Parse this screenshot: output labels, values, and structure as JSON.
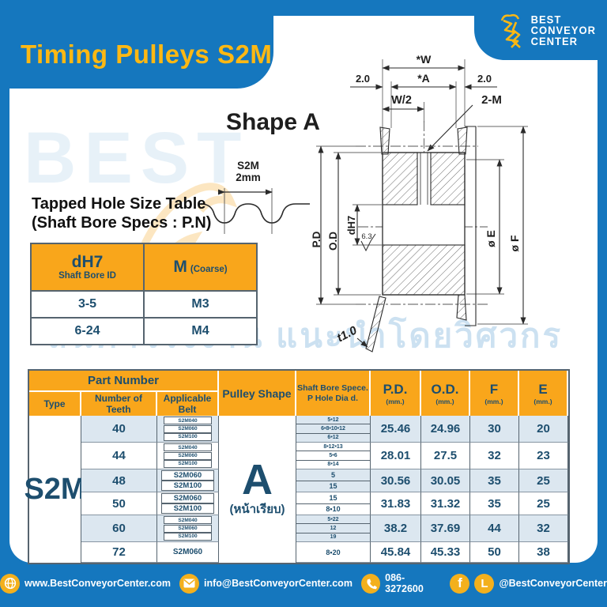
{
  "page": {
    "title": "Timing Pulleys S2M"
  },
  "brand": {
    "line1": "BEST",
    "line2": "CONVEYOR",
    "line3": "CENTER"
  },
  "watermark": {
    "letters": "BEST",
    "thai": "สินค้าโรงงาน แนะนำโดยวิศวกร"
  },
  "drawing": {
    "shape_title": "Shape A",
    "labels": {
      "w": "*W",
      "a": "*A",
      "left_offset": "2.0",
      "right_offset": "2.0",
      "half_width": "W/2",
      "tapped_hole": "2-M",
      "pd": "P.D",
      "od": "O.D",
      "bore": "dH7",
      "surface": "6.3",
      "e": "ø E",
      "f": "ø F",
      "thickness": "t1.0"
    },
    "tooth_profile": {
      "series": "S2M",
      "pitch": "2mm"
    }
  },
  "tapped_table": {
    "heading_line1": "Tapped Hole Size Table",
    "heading_line2": "(Shaft Bore Specs : P.N)",
    "col1_title": "dH7",
    "col1_sub": "Shaft Bore ID",
    "col2_title": "M",
    "col2_sub": "(Coarse)",
    "rows": [
      {
        "bore": "3-5",
        "m": "M3"
      },
      {
        "bore": "6-24",
        "m": "M4"
      }
    ]
  },
  "main_table": {
    "headers": {
      "part_number": "Part Number",
      "type": "Type",
      "teeth": "Number of Teeth",
      "belt": "Applicable Belt",
      "shape": "Pulley Shape",
      "bore_line1": "Shaft Bore Spece.",
      "bore_line2": "P Hole Dia d.",
      "pd": "P.D.",
      "od": "O.D.",
      "f": "F",
      "e": "E",
      "mm": "(mm.)"
    },
    "type": "S2M",
    "shape": {
      "letter": "A",
      "thai": "(หน้าเรียบ)"
    },
    "rows": [
      {
        "teeth": "40",
        "belts": [
          "S2M040",
          "S2M060",
          "S2M100"
        ],
        "bores": [
          "5•12",
          "6•8•10•12",
          "6•12"
        ],
        "pd": "25.46",
        "od": "24.96",
        "f": "30",
        "e": "20",
        "striped": true
      },
      {
        "teeth": "44",
        "belts": [
          "S2M040",
          "S2M060",
          "S2M100"
        ],
        "bores": [
          "8•12•13",
          "5•6",
          "8•14"
        ],
        "pd": "28.01",
        "od": "27.5",
        "f": "32",
        "e": "23",
        "striped": false
      },
      {
        "teeth": "48",
        "belts": [
          "S2M060",
          "S2M100"
        ],
        "bores": [
          "5",
          "15"
        ],
        "pd": "30.56",
        "od": "30.05",
        "f": "35",
        "e": "25",
        "striped": true
      },
      {
        "teeth": "50",
        "belts": [
          "S2M060",
          "S2M100"
        ],
        "bores": [
          "15",
          "8•10"
        ],
        "pd": "31.83",
        "od": "31.32",
        "f": "35",
        "e": "25",
        "striped": false
      },
      {
        "teeth": "60",
        "belts": [
          "S2M040",
          "S2M060",
          "S2M100"
        ],
        "bores": [
          "5•22",
          "12",
          "19"
        ],
        "pd": "38.2",
        "od": "37.69",
        "f": "44",
        "e": "32",
        "striped": true
      },
      {
        "teeth": "72",
        "belts": [
          "S2M060"
        ],
        "bores": [
          "8•20"
        ],
        "pd": "45.84",
        "od": "45.33",
        "f": "50",
        "e": "38",
        "striped": false
      }
    ]
  },
  "footer": {
    "website": "www.BestConveyorCenter.com",
    "email": "info@BestConveyorCenter.com",
    "phone": "086-3272600",
    "social": "@BestConveyorCenter"
  }
}
